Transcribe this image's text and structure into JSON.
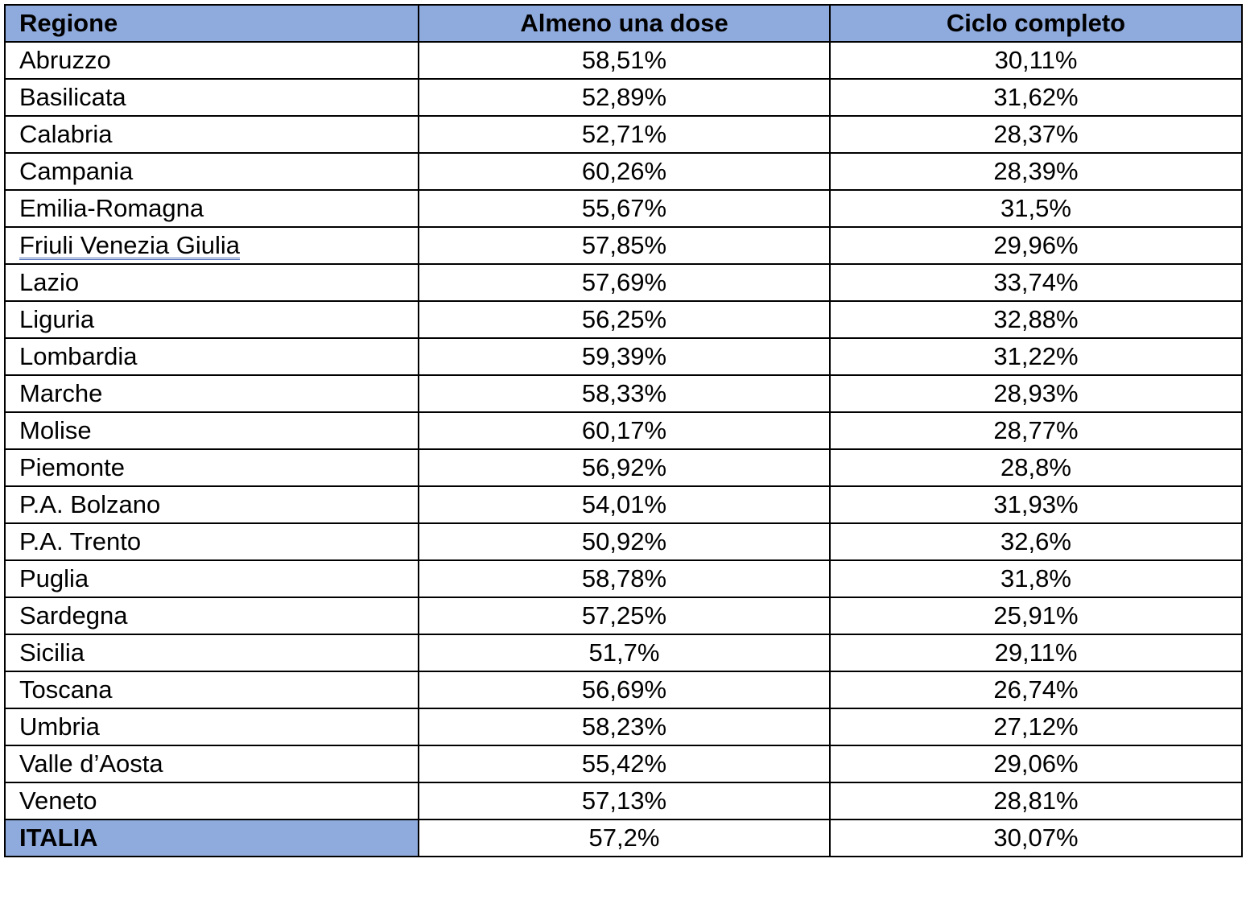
{
  "table": {
    "headers": [
      "Regione",
      "Almeno una dose",
      "Ciclo completo"
    ],
    "header_color": "#8faadc",
    "rows": [
      {
        "regione": "Abruzzo",
        "almeno_una_dose": "58,51%",
        "ciclo_completo": "30,11%"
      },
      {
        "regione": "Basilicata",
        "almeno_una_dose": "52,89%",
        "ciclo_completo": "31,62%"
      },
      {
        "regione": "Calabria",
        "almeno_una_dose": "52,71%",
        "ciclo_completo": "28,37%"
      },
      {
        "regione": "Campania",
        "almeno_una_dose": "60,26%",
        "ciclo_completo": "28,39%"
      },
      {
        "regione": "Emilia-Romagna",
        "almeno_una_dose": "55,67%",
        "ciclo_completo": "31,5%"
      },
      {
        "regione": "Friuli Venezia Giulia",
        "almeno_una_dose": "57,85%",
        "ciclo_completo": "29,96%"
      },
      {
        "regione": "Lazio",
        "almeno_una_dose": "57,69%",
        "ciclo_completo": "33,74%"
      },
      {
        "regione": "Liguria",
        "almeno_una_dose": "56,25%",
        "ciclo_completo": "32,88%"
      },
      {
        "regione": "Lombardia",
        "almeno_una_dose": "59,39%",
        "ciclo_completo": "31,22%"
      },
      {
        "regione": "Marche",
        "almeno_una_dose": "58,33%",
        "ciclo_completo": "28,93%"
      },
      {
        "regione": "Molise",
        "almeno_una_dose": "60,17%",
        "ciclo_completo": "28,77%"
      },
      {
        "regione": "Piemonte",
        "almeno_una_dose": "56,92%",
        "ciclo_completo": "28,8%"
      },
      {
        "regione": "P.A. Bolzano",
        "almeno_una_dose": "54,01%",
        "ciclo_completo": "31,93%"
      },
      {
        "regione": "P.A. Trento",
        "almeno_una_dose": "50,92%",
        "ciclo_completo": "32,6%"
      },
      {
        "regione": "Puglia",
        "almeno_una_dose": "58,78%",
        "ciclo_completo": "31,8%"
      },
      {
        "regione": "Sardegna",
        "almeno_una_dose": "57,25%",
        "ciclo_completo": "25,91%"
      },
      {
        "regione": "Sicilia",
        "almeno_una_dose": "51,7%",
        "ciclo_completo": "29,11%"
      },
      {
        "regione": "Toscana",
        "almeno_una_dose": "56,69%",
        "ciclo_completo": "26,74%"
      },
      {
        "regione": "Umbria",
        "almeno_una_dose": "58,23%",
        "ciclo_completo": "27,12%"
      },
      {
        "regione": "Valle d’Aosta",
        "almeno_una_dose": "55,42%",
        "ciclo_completo": "29,06%"
      },
      {
        "regione": "Veneto",
        "almeno_una_dose": "57,13%",
        "ciclo_completo": "28,81%"
      }
    ],
    "total": {
      "regione": "ITALIA",
      "almeno_una_dose": "57,2%",
      "ciclo_completo": "30,07%"
    }
  }
}
